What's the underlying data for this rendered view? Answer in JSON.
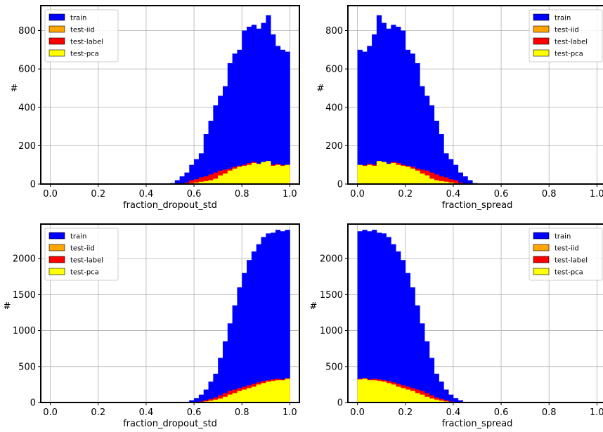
{
  "chart_data": [
    {
      "type": "bar",
      "xlabel": "fraction_dropout_std",
      "ylabel": "#",
      "xlim": [
        -0.04,
        1.04
      ],
      "ylim": [
        0,
        930
      ],
      "xticks": [
        "0.0",
        "0.2",
        "0.4",
        "0.6",
        "0.8",
        "1.0"
      ],
      "xtick_values": [
        0.0,
        0.2,
        0.4,
        0.6,
        0.8,
        1.0
      ],
      "yticks": [
        "0",
        "200",
        "400",
        "600",
        "800"
      ],
      "ytick_values": [
        0,
        200,
        400,
        600,
        800
      ],
      "grid": true,
      "legend_position": "top-left",
      "bin_edges": [
        0.5,
        0.52,
        0.54,
        0.56,
        0.58,
        0.6,
        0.62,
        0.64,
        0.66,
        0.68,
        0.7,
        0.72,
        0.74,
        0.76,
        0.78,
        0.8,
        0.82,
        0.84,
        0.86,
        0.88,
        0.9,
        0.92,
        0.94,
        0.96,
        0.98,
        1.0
      ],
      "series": [
        {
          "name": "train",
          "color": "#0000ff",
          "values": [
            5,
            20,
            40,
            60,
            100,
            130,
            160,
            260,
            330,
            410,
            460,
            510,
            630,
            680,
            700,
            800,
            820,
            830,
            810,
            840,
            880,
            780,
            720,
            700,
            690
          ]
        },
        {
          "name": "test-iid",
          "color": "#ffa500",
          "values": [
            0,
            0,
            0,
            2,
            5,
            8,
            10,
            12,
            15,
            18,
            20,
            22,
            25,
            26,
            27,
            28,
            29,
            28,
            27,
            27,
            28,
            26,
            25,
            24,
            23
          ]
        },
        {
          "name": "test-label",
          "color": "#ff0000",
          "values": [
            0,
            0,
            1,
            8,
            20,
            25,
            35,
            40,
            50,
            60,
            70,
            75,
            80,
            90,
            95,
            100,
            110,
            115,
            105,
            110,
            120,
            100,
            105,
            98,
            100
          ]
        },
        {
          "name": "test-pca",
          "color": "#ffff00",
          "values": [
            0,
            0,
            0,
            2,
            5,
            8,
            12,
            15,
            20,
            28,
            45,
            55,
            70,
            80,
            90,
            95,
            100,
            110,
            105,
            115,
            120,
            95,
            100,
            95,
            100
          ]
        }
      ]
    },
    {
      "type": "bar",
      "xlabel": "fraction_spread",
      "ylabel": "#",
      "xlim": [
        -0.04,
        1.04
      ],
      "ylim": [
        0,
        930
      ],
      "xticks": [
        "0.0",
        "0.2",
        "0.4",
        "0.6",
        "0.8",
        "1.0"
      ],
      "xtick_values": [
        0.0,
        0.2,
        0.4,
        0.6,
        0.8,
        1.0
      ],
      "yticks": [
        "0",
        "200",
        "400",
        "600",
        "800"
      ],
      "ytick_values": [
        0,
        200,
        400,
        600,
        800
      ],
      "grid": true,
      "legend_position": "top-right",
      "bin_edges": [
        0.0,
        0.02,
        0.04,
        0.06,
        0.08,
        0.1,
        0.12,
        0.14,
        0.16,
        0.18,
        0.2,
        0.22,
        0.24,
        0.26,
        0.28,
        0.3,
        0.32,
        0.34,
        0.36,
        0.38,
        0.4,
        0.42,
        0.44,
        0.46,
        0.48,
        0.5
      ],
      "series": [
        {
          "name": "train",
          "color": "#0000ff",
          "values": [
            700,
            690,
            720,
            780,
            880,
            840,
            810,
            830,
            820,
            800,
            700,
            680,
            630,
            510,
            460,
            410,
            330,
            260,
            160,
            130,
            100,
            60,
            40,
            20,
            5
          ]
        },
        {
          "name": "test-iid",
          "color": "#ffa500",
          "values": [
            23,
            24,
            25,
            26,
            28,
            27,
            27,
            28,
            29,
            28,
            27,
            26,
            25,
            22,
            20,
            18,
            15,
            12,
            10,
            8,
            5,
            2,
            0,
            0,
            0
          ]
        },
        {
          "name": "test-label",
          "color": "#ff0000",
          "values": [
            100,
            98,
            105,
            100,
            120,
            110,
            105,
            115,
            110,
            100,
            95,
            90,
            80,
            75,
            70,
            60,
            50,
            40,
            35,
            25,
            20,
            8,
            1,
            0,
            0
          ]
        },
        {
          "name": "test-pca",
          "color": "#ffff00",
          "values": [
            100,
            95,
            100,
            95,
            120,
            115,
            105,
            110,
            100,
            95,
            90,
            80,
            70,
            55,
            45,
            28,
            20,
            15,
            12,
            8,
            5,
            2,
            0,
            0,
            0
          ]
        }
      ]
    },
    {
      "type": "bar",
      "xlabel": "fraction_dropout_std",
      "ylabel": "#",
      "xlim": [
        -0.04,
        1.04
      ],
      "ylim": [
        0,
        2480
      ],
      "xticks": [
        "0.0",
        "0.2",
        "0.4",
        "0.6",
        "0.8",
        "1.0"
      ],
      "xtick_values": [
        0.0,
        0.2,
        0.4,
        0.6,
        0.8,
        1.0
      ],
      "yticks": [
        "0",
        "500",
        "1000",
        "1500",
        "2000"
      ],
      "ytick_values": [
        0,
        500,
        1000,
        1500,
        2000
      ],
      "grid": true,
      "legend_position": "top-left",
      "bin_edges": [
        0.56,
        0.58,
        0.6,
        0.62,
        0.64,
        0.66,
        0.68,
        0.7,
        0.72,
        0.74,
        0.76,
        0.78,
        0.8,
        0.82,
        0.84,
        0.86,
        0.88,
        0.9,
        0.92,
        0.94,
        0.96,
        0.98,
        1.0
      ],
      "series": [
        {
          "name": "train",
          "color": "#0000ff",
          "values": [
            10,
            30,
            60,
            110,
            180,
            290,
            400,
            620,
            850,
            1100,
            1350,
            1600,
            1800,
            1980,
            2100,
            2200,
            2300,
            2350,
            2360,
            2400,
            2380,
            2400,
            2380
          ]
        },
        {
          "name": "test-iid",
          "color": "#ffa500",
          "values": [
            0,
            0,
            2,
            5,
            8,
            12,
            15,
            20,
            25,
            30,
            35,
            40,
            45,
            50,
            55,
            60,
            65,
            70,
            72,
            75,
            75,
            78,
            78
          ]
        },
        {
          "name": "test-label",
          "color": "#ff0000",
          "values": [
            0,
            2,
            5,
            15,
            30,
            50,
            70,
            100,
            130,
            160,
            180,
            200,
            220,
            240,
            260,
            280,
            300,
            310,
            320,
            330,
            320,
            340,
            330
          ]
        },
        {
          "name": "test-pca",
          "color": "#ffff00",
          "values": [
            0,
            0,
            2,
            8,
            15,
            25,
            40,
            55,
            80,
            110,
            130,
            160,
            180,
            200,
            220,
            250,
            270,
            290,
            300,
            310,
            310,
            330,
            320
          ]
        }
      ]
    },
    {
      "type": "bar",
      "xlabel": "fraction_spread",
      "ylabel": "#",
      "xlim": [
        -0.04,
        1.04
      ],
      "ylim": [
        0,
        2480
      ],
      "xticks": [
        "0.0",
        "0.2",
        "0.4",
        "0.6",
        "0.8",
        "1.0"
      ],
      "xtick_values": [
        0.0,
        0.2,
        0.4,
        0.6,
        0.8,
        1.0
      ],
      "yticks": [
        "0",
        "500",
        "1000",
        "1500",
        "2000"
      ],
      "ytick_values": [
        0,
        500,
        1000,
        1500,
        2000
      ],
      "grid": true,
      "legend_position": "top-right",
      "bin_edges": [
        0.0,
        0.02,
        0.04,
        0.06,
        0.08,
        0.1,
        0.12,
        0.14,
        0.16,
        0.18,
        0.2,
        0.22,
        0.24,
        0.26,
        0.28,
        0.3,
        0.32,
        0.34,
        0.36,
        0.38,
        0.4,
        0.42,
        0.44
      ],
      "series": [
        {
          "name": "train",
          "color": "#0000ff",
          "values": [
            2380,
            2400,
            2380,
            2400,
            2360,
            2350,
            2300,
            2200,
            2100,
            1980,
            1800,
            1600,
            1350,
            1100,
            850,
            620,
            400,
            290,
            180,
            110,
            60,
            30,
            10
          ]
        },
        {
          "name": "test-iid",
          "color": "#ffa500",
          "values": [
            78,
            78,
            75,
            75,
            72,
            70,
            65,
            60,
            55,
            50,
            45,
            40,
            35,
            30,
            25,
            20,
            15,
            12,
            8,
            5,
            2,
            0,
            0
          ]
        },
        {
          "name": "test-label",
          "color": "#ff0000",
          "values": [
            330,
            340,
            320,
            330,
            320,
            310,
            300,
            280,
            260,
            240,
            220,
            200,
            180,
            160,
            130,
            100,
            70,
            50,
            30,
            15,
            5,
            2,
            0
          ]
        },
        {
          "name": "test-pca",
          "color": "#ffff00",
          "values": [
            320,
            330,
            310,
            310,
            300,
            290,
            270,
            250,
            220,
            200,
            180,
            160,
            130,
            110,
            80,
            55,
            40,
            25,
            15,
            8,
            2,
            0,
            0
          ]
        }
      ]
    }
  ]
}
